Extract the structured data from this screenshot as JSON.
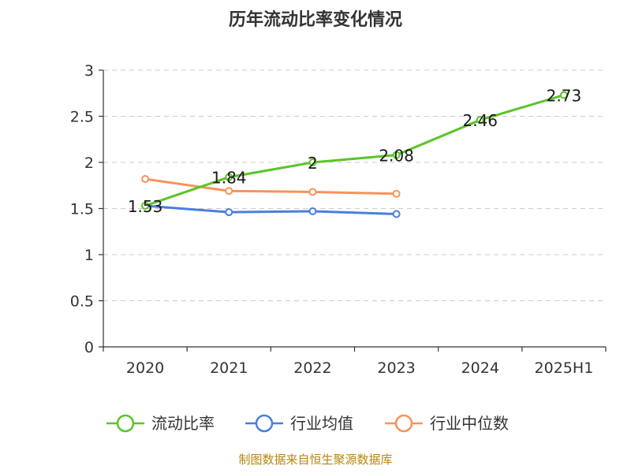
{
  "chart_data": {
    "type": "line",
    "title": "历年流动比率变化情况",
    "categories": [
      "2020",
      "2021",
      "2022",
      "2023",
      "2024",
      "2025H1"
    ],
    "ylim": [
      0,
      3
    ],
    "yticks": [
      "0",
      "0.5",
      "1",
      "1.5",
      "2",
      "2.5",
      "3"
    ],
    "grid": true,
    "legend_position": "bottom",
    "series": [
      {
        "name": "流动比率",
        "color": "#5bc42a",
        "values": [
          1.53,
          1.84,
          2.0,
          2.08,
          2.46,
          2.73
        ],
        "labels": [
          "1.53",
          "1.84",
          "2",
          "2.08",
          "2.46",
          "2.73"
        ]
      },
      {
        "name": "行业均值",
        "color": "#4a7fdc",
        "values": [
          1.53,
          1.46,
          1.47,
          1.44,
          null,
          null
        ]
      },
      {
        "name": "行业中位数",
        "color": "#f7935a",
        "values": [
          1.82,
          1.69,
          1.68,
          1.66,
          null,
          null
        ]
      }
    ],
    "source": "制图数据来自恒生聚源数据库"
  }
}
